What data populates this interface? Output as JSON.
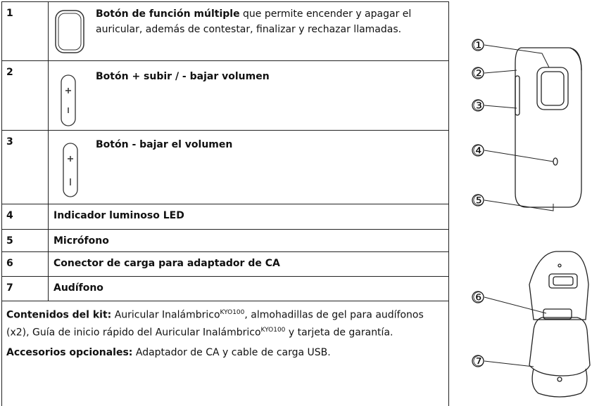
{
  "table": {
    "rows": [
      [
        "1",
        "Botón de función múltiple",
        "que permite encender y apagar el auricular, además de contestar, finalizar y rechazar llamadas."
      ],
      [
        "2",
        "Botón + subir / - bajar volumen"
      ],
      [
        "3",
        "Botón - bajar el volumen"
      ],
      [
        "4",
        "Indicador luminoso LED"
      ],
      [
        "5",
        "Micrófono"
      ],
      [
        "6",
        "Conector de carga para adaptador de CA"
      ],
      [
        "7",
        "Audífono"
      ]
    ]
  },
  "notes": {
    "kit": {
      "label": "Contenidos del kit:",
      "parts": [
        "Auricular Inalámbrico",
        "KYO100",
        ", almohadillas de gel para audífonos (x2), Guía de inicio rápido del Auricular Inalámbrico",
        "KYO100",
        " y tarjeta de garantía."
      ]
    },
    "accessories": {
      "label": "Accesorios opcionales:",
      "text": "Adaptador de CA y cable de carga USB."
    }
  },
  "figure": {
    "callouts": [
      "①",
      "②",
      "③",
      "④",
      "⑤",
      "⑥",
      "⑦"
    ]
  }
}
